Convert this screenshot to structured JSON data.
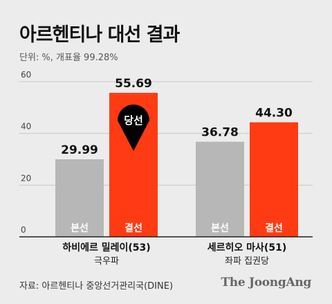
{
  "title": "아르헨티나 대선 결과",
  "unit_note": "단위: %, 개표율 99.28%",
  "source": "자료: 아르헨티나 중앙선거관리국(DINE)",
  "brand": "The JoongAng",
  "colors": {
    "background": "#ececec",
    "first_round": "#b7b7b7",
    "runoff": "#ff3b13",
    "badge": "#000000",
    "axis": "#222222",
    "grid": "#c8c8c8"
  },
  "badge_label": "당선",
  "chart_data": {
    "type": "bar",
    "ylim": [
      0,
      60
    ],
    "yticks": [
      0,
      20,
      40,
      60
    ],
    "grid": true,
    "series_names": [
      "본선",
      "결선"
    ],
    "groups": [
      {
        "name": "하비에르 밀레이(53)",
        "sub": "극우파",
        "values": [
          29.99,
          55.69
        ],
        "labels": [
          "29.99",
          "55.69"
        ],
        "winner": true
      },
      {
        "name": "세르히오 마사(51)",
        "sub": "좌파 집권당",
        "values": [
          36.78,
          44.3
        ],
        "labels": [
          "36.78",
          "44.30"
        ],
        "winner": false
      }
    ]
  }
}
